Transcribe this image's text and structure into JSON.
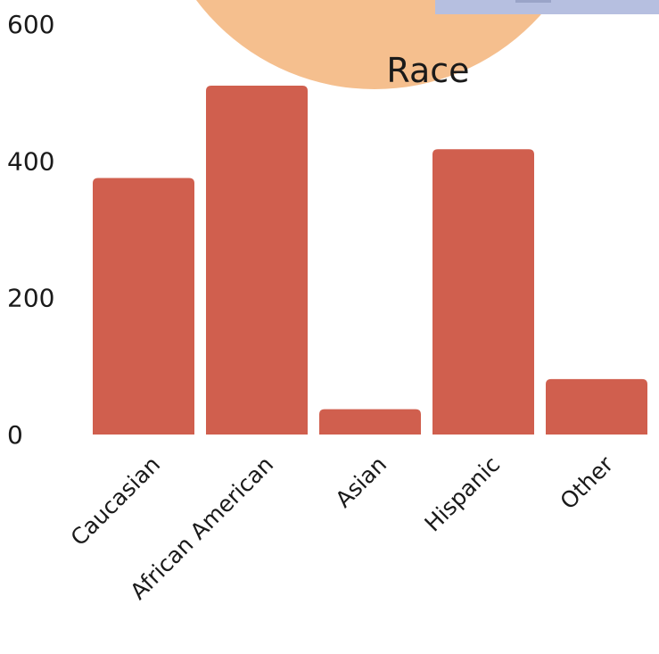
{
  "chart_data": {
    "type": "bar",
    "title": "Race",
    "xlabel": "",
    "ylabel": "",
    "categories": [
      "Caucasian",
      "African American",
      "Asian",
      "Hispanic",
      "Other"
    ],
    "values": [
      375,
      510,
      37,
      417,
      81
    ],
    "ylim": [
      0,
      600
    ],
    "yticks": [
      "0",
      "200",
      "400",
      "600"
    ],
    "grid": false,
    "colors": {
      "bar": "#d05f4e",
      "title_circle": "#f5bf8e",
      "corner_box": "#b6bfe0",
      "corner_box_inner": "#9aa4c8"
    }
  }
}
